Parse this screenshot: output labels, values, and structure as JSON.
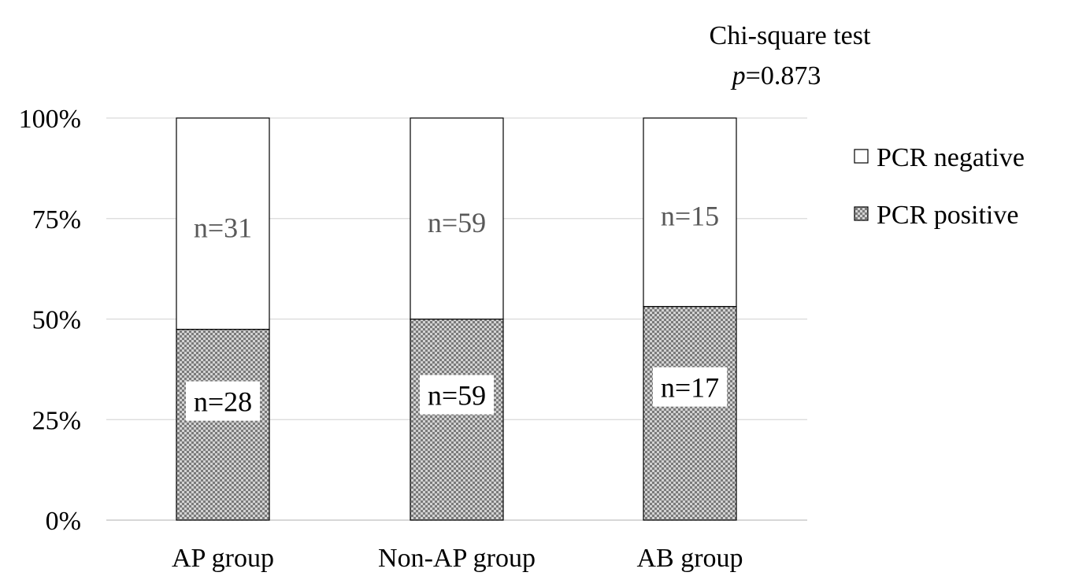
{
  "chart_data": {
    "type": "bar",
    "stacked": true,
    "percent_stacked": true,
    "categories": [
      "AP group",
      "Non-AP group",
      "AB group"
    ],
    "series": [
      {
        "name": "PCR positive",
        "counts": [
          28,
          59,
          17
        ],
        "labels": [
          "n=28",
          "n=59",
          "n=17"
        ],
        "pattern": "checkered-gray"
      },
      {
        "name": "PCR negative",
        "counts": [
          31,
          59,
          15
        ],
        "labels": [
          "n=31",
          "n=59",
          "n=15"
        ],
        "pattern": "white"
      }
    ],
    "y_ticks": [
      "0%",
      "25%",
      "50%",
      "75%",
      "100%"
    ],
    "ylim": [
      0,
      100
    ],
    "grid": true,
    "legend_position": "right",
    "annotation": {
      "line1": "Chi-square test",
      "p_symbol": "p",
      "p_value": "=0.873"
    }
  }
}
